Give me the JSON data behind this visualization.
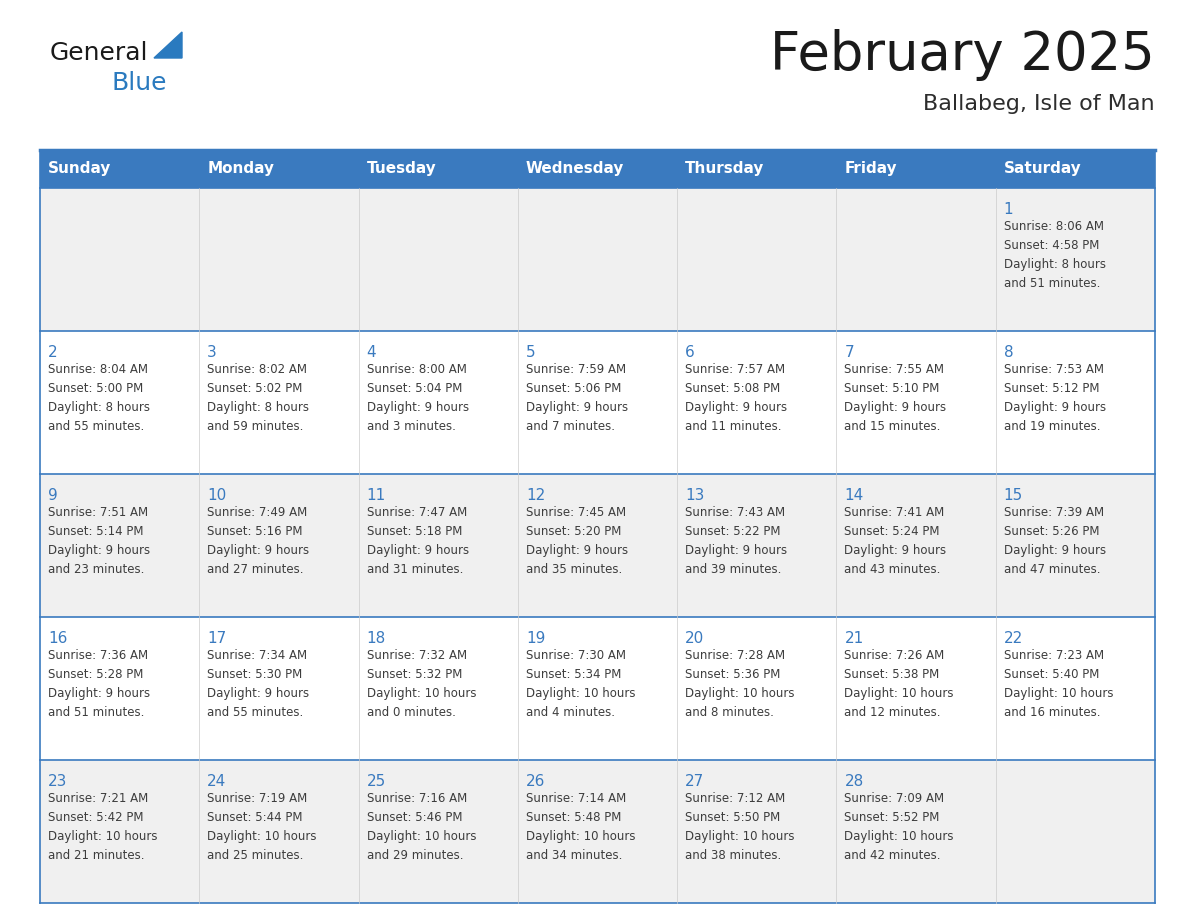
{
  "title": "February 2025",
  "subtitle": "Ballabeg, Isle of Man",
  "days_of_week": [
    "Sunday",
    "Monday",
    "Tuesday",
    "Wednesday",
    "Thursday",
    "Friday",
    "Saturday"
  ],
  "header_bg": "#3a7abf",
  "header_text": "#ffffff",
  "cell_bg_light": "#f0f0f0",
  "cell_bg_white": "#ffffff",
  "border_color": "#3a7abf",
  "day_number_color": "#3a7abf",
  "info_text_color": "#3d3d3d",
  "title_color": "#1a1a1a",
  "subtitle_color": "#2d2d2d",
  "logo_general_color": "#1a1a1a",
  "logo_blue_color": "#2a7abf",
  "weeks": [
    [
      {
        "day": null,
        "info": ""
      },
      {
        "day": null,
        "info": ""
      },
      {
        "day": null,
        "info": ""
      },
      {
        "day": null,
        "info": ""
      },
      {
        "day": null,
        "info": ""
      },
      {
        "day": null,
        "info": ""
      },
      {
        "day": 1,
        "info": "Sunrise: 8:06 AM\nSunset: 4:58 PM\nDaylight: 8 hours\nand 51 minutes."
      }
    ],
    [
      {
        "day": 2,
        "info": "Sunrise: 8:04 AM\nSunset: 5:00 PM\nDaylight: 8 hours\nand 55 minutes."
      },
      {
        "day": 3,
        "info": "Sunrise: 8:02 AM\nSunset: 5:02 PM\nDaylight: 8 hours\nand 59 minutes."
      },
      {
        "day": 4,
        "info": "Sunrise: 8:00 AM\nSunset: 5:04 PM\nDaylight: 9 hours\nand 3 minutes."
      },
      {
        "day": 5,
        "info": "Sunrise: 7:59 AM\nSunset: 5:06 PM\nDaylight: 9 hours\nand 7 minutes."
      },
      {
        "day": 6,
        "info": "Sunrise: 7:57 AM\nSunset: 5:08 PM\nDaylight: 9 hours\nand 11 minutes."
      },
      {
        "day": 7,
        "info": "Sunrise: 7:55 AM\nSunset: 5:10 PM\nDaylight: 9 hours\nand 15 minutes."
      },
      {
        "day": 8,
        "info": "Sunrise: 7:53 AM\nSunset: 5:12 PM\nDaylight: 9 hours\nand 19 minutes."
      }
    ],
    [
      {
        "day": 9,
        "info": "Sunrise: 7:51 AM\nSunset: 5:14 PM\nDaylight: 9 hours\nand 23 minutes."
      },
      {
        "day": 10,
        "info": "Sunrise: 7:49 AM\nSunset: 5:16 PM\nDaylight: 9 hours\nand 27 minutes."
      },
      {
        "day": 11,
        "info": "Sunrise: 7:47 AM\nSunset: 5:18 PM\nDaylight: 9 hours\nand 31 minutes."
      },
      {
        "day": 12,
        "info": "Sunrise: 7:45 AM\nSunset: 5:20 PM\nDaylight: 9 hours\nand 35 minutes."
      },
      {
        "day": 13,
        "info": "Sunrise: 7:43 AM\nSunset: 5:22 PM\nDaylight: 9 hours\nand 39 minutes."
      },
      {
        "day": 14,
        "info": "Sunrise: 7:41 AM\nSunset: 5:24 PM\nDaylight: 9 hours\nand 43 minutes."
      },
      {
        "day": 15,
        "info": "Sunrise: 7:39 AM\nSunset: 5:26 PM\nDaylight: 9 hours\nand 47 minutes."
      }
    ],
    [
      {
        "day": 16,
        "info": "Sunrise: 7:36 AM\nSunset: 5:28 PM\nDaylight: 9 hours\nand 51 minutes."
      },
      {
        "day": 17,
        "info": "Sunrise: 7:34 AM\nSunset: 5:30 PM\nDaylight: 9 hours\nand 55 minutes."
      },
      {
        "day": 18,
        "info": "Sunrise: 7:32 AM\nSunset: 5:32 PM\nDaylight: 10 hours\nand 0 minutes."
      },
      {
        "day": 19,
        "info": "Sunrise: 7:30 AM\nSunset: 5:34 PM\nDaylight: 10 hours\nand 4 minutes."
      },
      {
        "day": 20,
        "info": "Sunrise: 7:28 AM\nSunset: 5:36 PM\nDaylight: 10 hours\nand 8 minutes."
      },
      {
        "day": 21,
        "info": "Sunrise: 7:26 AM\nSunset: 5:38 PM\nDaylight: 10 hours\nand 12 minutes."
      },
      {
        "day": 22,
        "info": "Sunrise: 7:23 AM\nSunset: 5:40 PM\nDaylight: 10 hours\nand 16 minutes."
      }
    ],
    [
      {
        "day": 23,
        "info": "Sunrise: 7:21 AM\nSunset: 5:42 PM\nDaylight: 10 hours\nand 21 minutes."
      },
      {
        "day": 24,
        "info": "Sunrise: 7:19 AM\nSunset: 5:44 PM\nDaylight: 10 hours\nand 25 minutes."
      },
      {
        "day": 25,
        "info": "Sunrise: 7:16 AM\nSunset: 5:46 PM\nDaylight: 10 hours\nand 29 minutes."
      },
      {
        "day": 26,
        "info": "Sunrise: 7:14 AM\nSunset: 5:48 PM\nDaylight: 10 hours\nand 34 minutes."
      },
      {
        "day": 27,
        "info": "Sunrise: 7:12 AM\nSunset: 5:50 PM\nDaylight: 10 hours\nand 38 minutes."
      },
      {
        "day": 28,
        "info": "Sunrise: 7:09 AM\nSunset: 5:52 PM\nDaylight: 10 hours\nand 42 minutes."
      },
      {
        "day": null,
        "info": ""
      }
    ]
  ]
}
